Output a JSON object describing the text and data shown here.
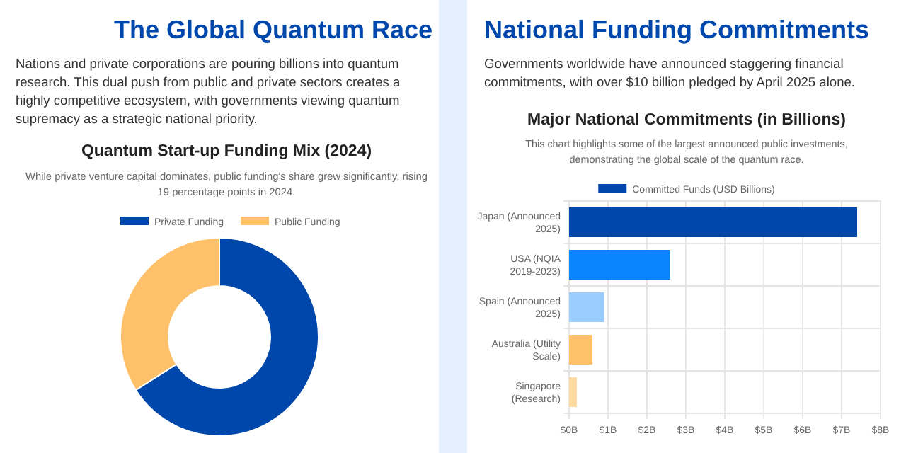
{
  "chart_data": [
    {
      "type": "donut",
      "title": "Quantum Start-up Funding Mix (2024)",
      "subtitle": "While private venture capital dominates, public funding's share grew significantly, rising 19 percentage points in 2024.",
      "annotations": [
        "The Global Quantum Race",
        "Nations and private corporations are pouring billions into quantum research. This dual push from public and private sectors creates a highly competitive ecosystem, with governments viewing quantum supremacy as a strategic national priority."
      ],
      "categories": [
        "Private Funding",
        "Public Funding"
      ],
      "values": [
        66,
        34
      ],
      "colors": [
        "#0047ab",
        "#ffc06a"
      ],
      "legend": "top"
    },
    {
      "type": "bar",
      "orientation": "horizontal",
      "title": "Major National Commitments (in Billions)",
      "subtitle": "This chart highlights some of the largest announced public investments, demonstrating the global scale of the quantum race.",
      "annotations": [
        "National Funding Commitments",
        "Governments worldwide have announced staggering financial commitments, with over $10 billion pledged by April 2025 alone."
      ],
      "categories": [
        "Japan (Announced 2025)",
        "USA (NQIA 2019-2023)",
        "Spain (Announced 2025)",
        "Australia (Utility Scale)",
        "Singapore (Research)"
      ],
      "series": [
        {
          "name": "Committed Funds (USD Billions)",
          "color": "#0047ab",
          "colors": [
            "#0047ab",
            "#0a84ff",
            "#99ccff",
            "#ffc06a",
            "#ffdba0"
          ],
          "values": [
            7.4,
            2.6,
            0.9,
            0.6,
            0.2
          ]
        }
      ],
      "xlim": [
        0,
        8
      ],
      "xticks": [
        {
          "value": 0,
          "label": "$0B"
        },
        {
          "value": 1,
          "label": "$1B"
        },
        {
          "value": 2,
          "label": "$2B"
        },
        {
          "value": 3,
          "label": "$3B"
        },
        {
          "value": 4,
          "label": "$4B"
        },
        {
          "value": 5,
          "label": "$5B"
        },
        {
          "value": 6,
          "label": "$6B"
        },
        {
          "value": 7,
          "label": "$7B"
        },
        {
          "value": 8,
          "label": "$8B"
        }
      ],
      "grid": true,
      "legend": "top"
    }
  ]
}
